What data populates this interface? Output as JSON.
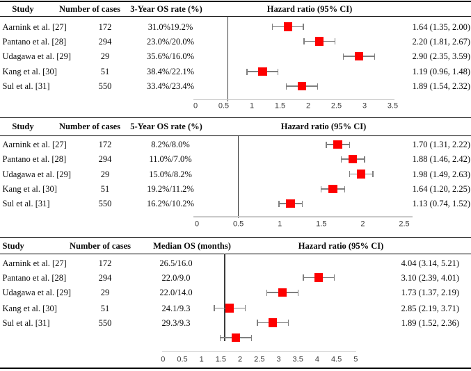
{
  "figure_title": "Forest plots of hazard ratios for overall survival across included studies",
  "colors": {
    "marker": "#fe0000",
    "whisker": "#7f7f7f",
    "axis_line": "#c9c9c9",
    "reference_line": "#3b3b3b",
    "rule": "#000000",
    "tick_text": "#3a3a3a",
    "background": "#ffffff"
  },
  "chart_data": [
    {
      "type": "forest",
      "panel": "3-year overall survival",
      "headers": {
        "study": "Study",
        "cases": "Number of cases",
        "outcome": "3-Year OS rate (%)",
        "hr": "Hazard ratio (95% CI)"
      },
      "rows": [
        {
          "study": "Aarnink et al. [27]",
          "cases": "172",
          "outcome": "31.0%19.2%",
          "hr": 1.64,
          "ci_low": 1.35,
          "ci_high": 2.0,
          "hr_text": "1.64 (1.35, 2.00)"
        },
        {
          "study": "Pantano et al. [28]",
          "cases": "294",
          "outcome": "23.0%/20.0%",
          "hr": 2.2,
          "ci_low": 1.81,
          "ci_high": 2.67,
          "hr_text": "2.20 (1.81, 2.67)"
        },
        {
          "study": "Udagawa et al. [29]",
          "cases": "29",
          "outcome": "35.6%/16.0%",
          "hr": 2.9,
          "ci_low": 2.35,
          "ci_high": 3.59,
          "hr_text": "2.90 (2.35, 3.59)"
        },
        {
          "study": "Kang et al. [30]",
          "cases": "51",
          "outcome": "38.4%/22.1%",
          "hr": 1.19,
          "ci_low": 0.96,
          "ci_high": 1.48,
          "hr_text": "1.19 (0.96, 1.48)"
        },
        {
          "study": "Sul et al. [31]",
          "cases": "550",
          "outcome": "33.4%/23.4%",
          "hr": 1.89,
          "ci_low": 1.54,
          "ci_high": 2.32,
          "hr_text": "1.89 (1.54, 2.32)"
        }
      ],
      "axis": {
        "ticks": [
          0,
          0.5,
          1,
          1.5,
          2,
          2.5,
          3,
          3.5
        ],
        "min": 0,
        "max": 3.5,
        "reference_line": 0.57
      }
    },
    {
      "type": "forest",
      "panel": "5-year overall survival",
      "headers": {
        "study": "Study",
        "cases": "Number of cases",
        "outcome": "5-Year OS rate (%)",
        "hr": "Hazard ratio (95% CI)"
      },
      "rows": [
        {
          "study": "Aarnink et al. [27]",
          "cases": "172",
          "outcome": "8.2%/8.0%",
          "hr": 1.7,
          "ci_low": 1.31,
          "ci_high": 2.22,
          "hr_text": "1.70 (1.31, 2.22)"
        },
        {
          "study": "Pantano et al. [28]",
          "cases": "294",
          "outcome": "11.0%/7.0%",
          "hr": 1.88,
          "ci_low": 1.46,
          "ci_high": 2.42,
          "hr_text": "1.88 (1.46, 2.42)"
        },
        {
          "study": "Udagawa et al. [29]",
          "cases": "29",
          "outcome": "15.0%/8.2%",
          "hr": 1.98,
          "ci_low": 1.49,
          "ci_high": 2.63,
          "hr_text": "1.98 (1.49, 2.63)"
        },
        {
          "study": "Kang et al. [30]",
          "cases": "51",
          "outcome": "19.2%/11.2%",
          "hr": 1.64,
          "ci_low": 1.2,
          "ci_high": 2.25,
          "hr_text": "1.64 (1.20, 2.25)"
        },
        {
          "study": "Sul et al. [31]",
          "cases": "550",
          "outcome": "16.2%/10.2%",
          "hr": 1.13,
          "ci_low": 0.74,
          "ci_high": 1.52,
          "hr_text": "1.13 (0.74, 1.52)"
        }
      ],
      "axis": {
        "ticks": [
          0,
          0.5,
          1,
          1.5,
          2,
          2.5
        ],
        "min": 0,
        "max": 2.5,
        "reference_line": 0.5
      }
    },
    {
      "type": "forest",
      "panel": "median overall survival",
      "headers": {
        "study": "Study",
        "cases": "Number of cases",
        "outcome": "Median OS (months)",
        "hr": "Hazard ratio (95% CI)"
      },
      "rows": [
        {
          "study": "Aarnink et al. [27]",
          "cases": "172",
          "outcome": "26.5/16.0",
          "hr": 4.04,
          "ci_low": 3.14,
          "ci_high": 5.21,
          "hr_text": "4.04 (3.14, 5.21)"
        },
        {
          "study": "Pantano et al. [28]",
          "cases": "294",
          "outcome": "22.0/9.0",
          "hr": 3.1,
          "ci_low": 2.39,
          "ci_high": 4.01,
          "hr_text": "3.10 (2.39, 4.01)"
        },
        {
          "study": "Udagawa et al. [29]",
          "cases": "29",
          "outcome": "22.0/14.0",
          "hr": 1.73,
          "ci_low": 1.37,
          "ci_high": 2.19,
          "hr_text": "1.73 (1.37, 2.19)"
        },
        {
          "study": "Kang et al. [30]",
          "cases": "51",
          "outcome": "24.1/9.3",
          "hr": 2.85,
          "ci_low": 2.19,
          "ci_high": 3.71,
          "hr_text": "2.85 (2.19, 3.71)"
        },
        {
          "study": "Sul et al. [31]",
          "cases": "550",
          "outcome": "29.3/9.3",
          "hr": 1.89,
          "ci_low": 1.52,
          "ci_high": 2.36,
          "hr_text": "1.89 (1.52, 2.36)"
        }
      ],
      "axis": {
        "ticks": [
          0,
          0.5,
          1,
          1.5,
          2,
          2.5,
          3,
          3.5,
          4,
          4.5,
          5
        ],
        "min": 0,
        "max": 5,
        "reference_line": 1.6
      },
      "plot_note": "markers are drawn one row below their study labels"
    }
  ]
}
